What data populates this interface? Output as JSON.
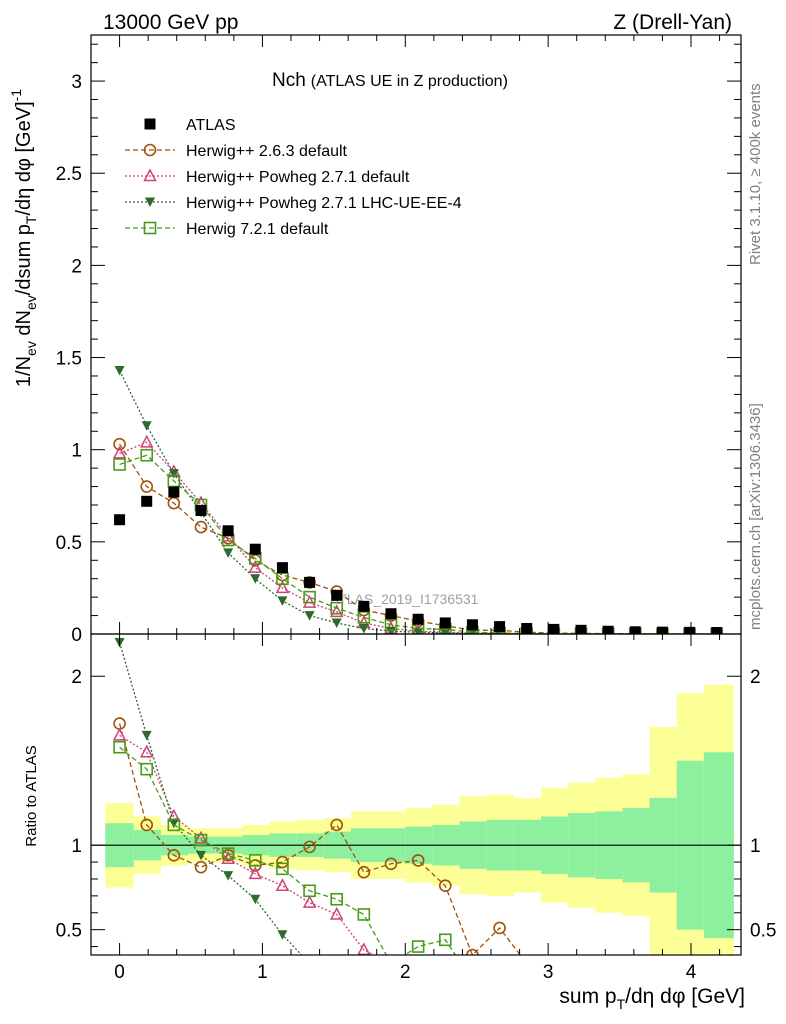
{
  "header": {
    "left": "13000 GeV pp",
    "right": "Z (Drell-Yan)"
  },
  "side_labels": {
    "rivet": "Rivet 3.1.10, ≥ 400k events",
    "mcplots": "mcplots.cern.ch [arXiv:1306.3436]"
  },
  "chart_data": {
    "type": "scatter",
    "title_main": "Nch",
    "title_sub": "(ATLAS UE in Z production)",
    "watermark": "ATLAS_2019_I1736531",
    "xlabel": "sum p_T/dη dφ [GeV]",
    "ylabel_main": "1/N_ev dN_ev/dsum p_T/dη dφ [GeV]^-1",
    "ylabel_ratio": "Ratio to ATLAS",
    "xlim": [
      -0.2,
      4.35
    ],
    "ylim_main": [
      0,
      3.25
    ],
    "ylim_ratio": [
      0.35,
      2.25
    ],
    "x_ticks": [
      "0",
      "1",
      "2",
      "3",
      "4"
    ],
    "y_ticks_main": [
      "0",
      "0.5",
      "1",
      "1.5",
      "2",
      "2.5",
      "3"
    ],
    "y_ticks_ratio": [
      "0.5",
      "1",
      "2"
    ],
    "x": [
      0,
      0.19,
      0.38,
      0.57,
      0.76,
      0.95,
      1.14,
      1.33,
      1.52,
      1.71,
      1.9,
      2.09,
      2.28,
      2.47,
      2.66,
      2.85,
      3.04,
      3.23,
      3.42,
      3.61,
      3.8,
      3.99,
      4.18
    ],
    "bin_edges": [
      -0.1,
      0.1,
      0.29,
      0.48,
      0.67,
      0.86,
      1.05,
      1.24,
      1.43,
      1.62,
      1.81,
      2.0,
      2.19,
      2.38,
      2.57,
      2.76,
      2.95,
      3.14,
      3.33,
      3.52,
      3.71,
      3.9,
      4.09,
      4.3
    ],
    "band_inner": [
      0.13,
      0.09,
      0.06,
      0.05,
      0.05,
      0.06,
      0.07,
      0.07,
      0.08,
      0.1,
      0.1,
      0.11,
      0.12,
      0.14,
      0.15,
      0.15,
      0.17,
      0.19,
      0.2,
      0.22,
      0.28,
      0.5,
      0.55
    ],
    "band_outer": [
      0.25,
      0.17,
      0.12,
      0.1,
      0.1,
      0.12,
      0.14,
      0.15,
      0.16,
      0.2,
      0.2,
      0.22,
      0.24,
      0.29,
      0.3,
      0.28,
      0.34,
      0.37,
      0.4,
      0.42,
      0.7,
      0.9,
      0.95
    ],
    "series": [
      {
        "name": "ATLAS",
        "marker": "square-filled",
        "color": "#000000",
        "values": [
          0.62,
          0.72,
          0.77,
          0.67,
          0.56,
          0.46,
          0.36,
          0.28,
          0.21,
          0.15,
          0.11,
          0.08,
          0.06,
          0.05,
          0.04,
          0.03,
          0.025,
          0.02,
          0.015,
          0.012,
          0.01,
          0.009,
          0.008
        ],
        "ratio": [
          1,
          1,
          1,
          1,
          1,
          1,
          1,
          1,
          1,
          1,
          1,
          1,
          1,
          1,
          1,
          1,
          1,
          1,
          1,
          1,
          1,
          1,
          1
        ]
      },
      {
        "name": "Herwig++ 2.6.3 default",
        "marker": "circle-open",
        "dash": "dashed",
        "color": "#a0520a",
        "values": [
          1.03,
          0.8,
          0.71,
          0.58,
          0.52,
          0.4,
          0.32,
          0.28,
          0.23,
          0.13,
          0.1,
          0.07,
          0.045,
          0.02,
          0.02,
          0.01,
          0.005,
          0.003,
          0.002,
          0.001,
          0.0,
          0.0,
          0.0
        ],
        "ratio": [
          1.72,
          1.12,
          0.94,
          0.87,
          0.94,
          0.88,
          0.9,
          0.99,
          1.12,
          0.84,
          0.89,
          0.91,
          0.76,
          0.35,
          0.51,
          0.3,
          null,
          null,
          null,
          null,
          null,
          null,
          null
        ]
      },
      {
        "name": "Herwig++ Powheg 2.7.1 default",
        "marker": "triangle-open",
        "dash": "dotted",
        "color": "#d0407a",
        "values": [
          0.98,
          1.04,
          0.88,
          0.71,
          0.53,
          0.36,
          0.25,
          0.17,
          0.12,
          0.06,
          0.03,
          0.015,
          0.01,
          0.005,
          0.003,
          0.002,
          0.001,
          0.0,
          0.0,
          0.0,
          0.0,
          0.0,
          0.0
        ],
        "ratio": [
          1.65,
          1.55,
          1.17,
          1.04,
          0.92,
          0.83,
          0.76,
          0.66,
          0.59,
          0.38,
          0.3,
          null,
          null,
          null,
          null,
          null,
          null,
          null,
          null,
          null,
          null,
          null,
          null
        ]
      },
      {
        "name": "Herwig++ Powheg 2.7.1 LHC-UE-EE-4",
        "marker": "triangle-down-filled",
        "dash": "dotted",
        "color": "#2d6a2d",
        "values": [
          1.43,
          1.13,
          0.87,
          0.66,
          0.44,
          0.3,
          0.18,
          0.1,
          0.06,
          0.03,
          0.015,
          0.01,
          0.005,
          0.003,
          0.002,
          0.001,
          0.0,
          0.0,
          0.0,
          0.0,
          0.0,
          0.0,
          0.0
        ],
        "ratio": [
          2.2,
          1.65,
          1.13,
          0.94,
          0.82,
          0.68,
          0.47,
          0.3,
          null,
          null,
          null,
          null,
          null,
          null,
          null,
          null,
          null,
          null,
          null,
          null,
          null,
          null,
          null
        ]
      },
      {
        "name": "Herwig 7.2.1 default",
        "marker": "square-open",
        "dash": "dashed",
        "color": "#4a9a1a",
        "values": [
          0.92,
          0.97,
          0.83,
          0.7,
          0.51,
          0.41,
          0.3,
          0.2,
          0.14,
          0.09,
          0.05,
          0.03,
          0.025,
          0.01,
          0.005,
          0.003,
          0.002,
          0.001,
          0.0,
          0.0,
          0.0,
          0.0,
          0.0
        ],
        "ratio": [
          1.58,
          1.45,
          1.12,
          1.03,
          0.95,
          0.91,
          0.86,
          0.73,
          0.68,
          0.59,
          0.3,
          0.4,
          0.44,
          0.2,
          null,
          null,
          null,
          null,
          null,
          null,
          null,
          null,
          null
        ]
      }
    ],
    "band_colors": {
      "inner": "#8cf09e",
      "outer": "#fbff96"
    }
  }
}
